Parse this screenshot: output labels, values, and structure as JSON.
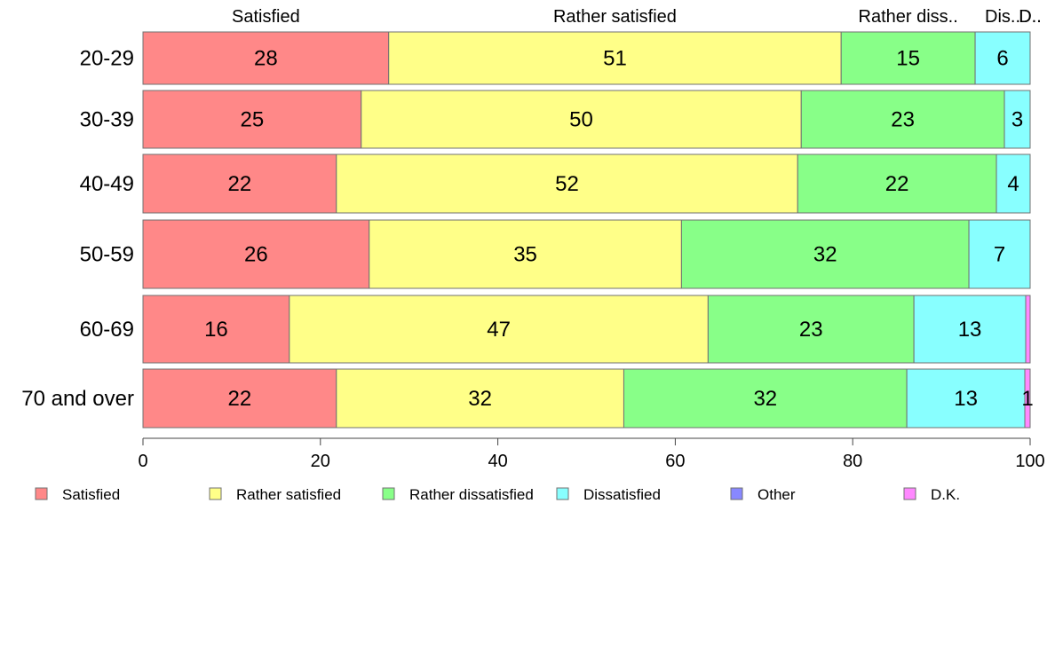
{
  "chart_data": {
    "type": "bar",
    "orientation": "horizontal",
    "stacked": true,
    "categories": [
      "20-29",
      "30-39",
      "40-49",
      "50-59",
      "60-69",
      "70 and over"
    ],
    "series": [
      {
        "name": "Satisfied",
        "color": "#FF8888",
        "values": [
          27.7,
          24.6,
          21.8,
          25.5,
          16.5,
          21.8
        ]
      },
      {
        "name": "Rather satisfied",
        "color": "#FFFF88",
        "values": [
          51.0,
          49.6,
          52.0,
          35.2,
          47.2,
          32.4
        ]
      },
      {
        "name": "Rather dissatisfied",
        "color": "#88FF88",
        "values": [
          15.1,
          22.9,
          22.4,
          32.4,
          23.2,
          31.9
        ]
      },
      {
        "name": "Dissatisfied",
        "color": "#88FFFF",
        "values": [
          6.2,
          2.9,
          3.8,
          6.9,
          12.6,
          13.3
        ]
      },
      {
        "name": "Other",
        "color": "#8888FF",
        "values": [
          0,
          0,
          0,
          0,
          0,
          0
        ]
      },
      {
        "name": "D.K.",
        "color": "#FF88FF",
        "values": [
          0,
          0,
          0,
          0,
          0.5,
          0.6
        ]
      }
    ],
    "data_labels": [
      [
        "28",
        "51",
        "15",
        "6",
        "",
        ""
      ],
      [
        "25",
        "50",
        "23",
        "3",
        "",
        ""
      ],
      [
        "22",
        "52",
        "22",
        "4",
        "",
        ""
      ],
      [
        "26",
        "35",
        "32",
        "7",
        "",
        ""
      ],
      [
        "16",
        "47",
        "23",
        "13",
        "",
        ""
      ],
      [
        "22",
        "32",
        "32",
        "13",
        "",
        "1"
      ]
    ],
    "top_labels": [
      "Satisfied",
      "Rather satisfied",
      "Rather diss..",
      "Dis..",
      "D..",
      "D.."
    ],
    "xticks": [
      0,
      20,
      40,
      60,
      80,
      100
    ],
    "xlim": [
      0,
      100
    ],
    "grid": false,
    "legend_position": "bottom"
  }
}
